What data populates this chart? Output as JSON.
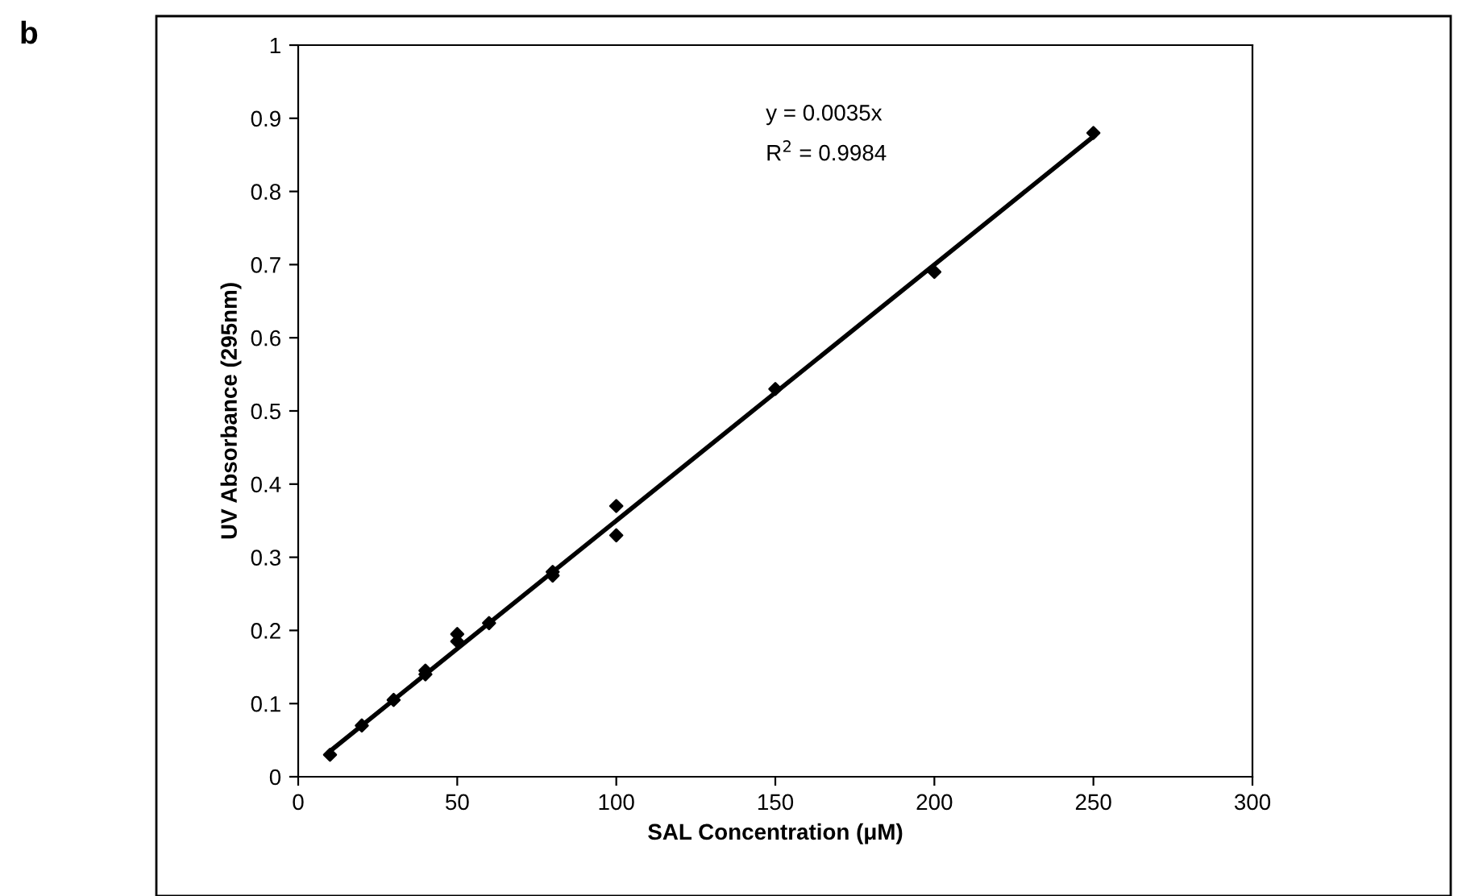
{
  "chart_data": {
    "type": "scatter",
    "xlabel": "SAL Concentration (μM)",
    "ylabel": "UV Absorbance (295nm)",
    "annotations": [
      "b",
      "y = 0.0035x",
      "R$^{2}$ = 0.9984"
    ],
    "series": [
      {
        "color": "#000000",
        "marker": "diamond",
        "x": [
          10,
          20,
          30,
          40,
          40,
          50,
          50,
          60,
          80,
          80,
          100,
          100,
          150,
          200,
          250
        ],
        "values": [
          0.03,
          0.07,
          0.105,
          0.14,
          0.145,
          0.195,
          0.185,
          0.21,
          0.275,
          0.28,
          0.37,
          0.33,
          0.53,
          0.69,
          0.88
        ]
      },
      {
        "type": "line",
        "color": "#000000",
        "marker": "none",
        "x": [
          10,
          250
        ],
        "values": [
          0.035,
          0.875
        ]
      }
    ],
    "xlim": [
      0,
      300
    ],
    "xticks": [
      0,
      50,
      100,
      150,
      200,
      250,
      300
    ],
    "ylim": [
      0,
      1
    ],
    "yticks": [
      0,
      0.1,
      0.2,
      0.3,
      0.4,
      0.5,
      0.6,
      0.7,
      0.8,
      0.9,
      1
    ],
    "grid": false
  }
}
